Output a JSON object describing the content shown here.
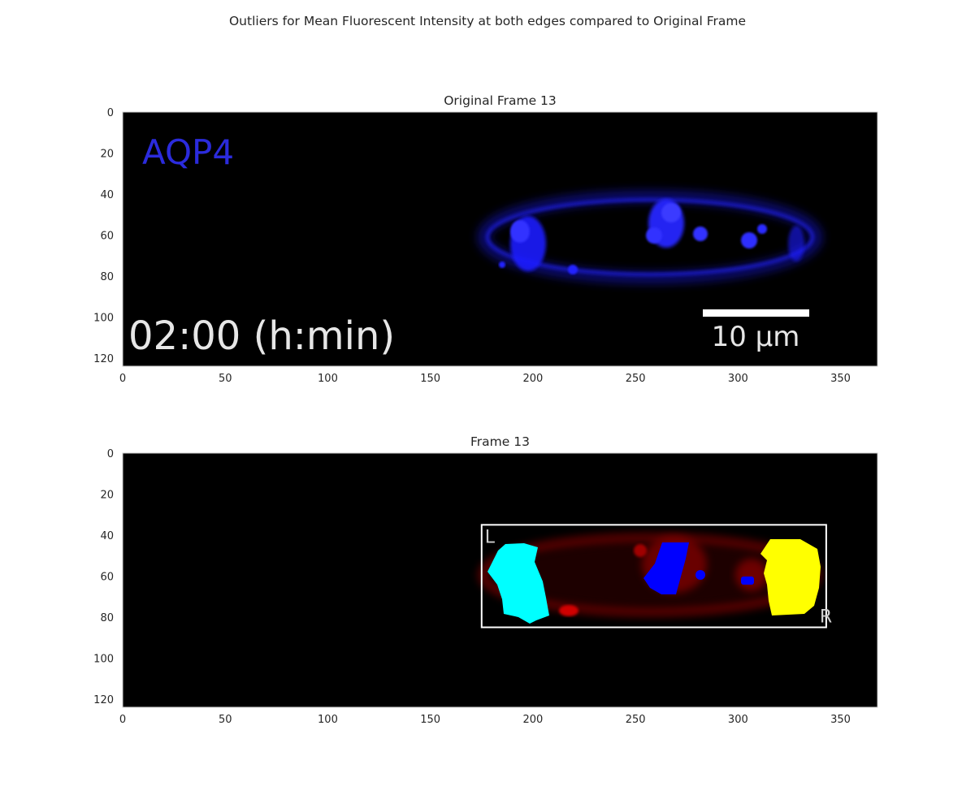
{
  "figure_title": "Outliers for Mean Fluorescent Intensity at both edges compared to Original Frame",
  "chart_data": [
    {
      "type": "image",
      "title": "Original Frame 13",
      "xlim": [
        0,
        368
      ],
      "ylim": [
        124,
        0
      ],
      "xticks": [
        0,
        50,
        100,
        150,
        200,
        250,
        300,
        350
      ],
      "yticks": [
        0,
        20,
        40,
        60,
        80,
        100,
        120
      ],
      "grid": false,
      "image_labels": {
        "channel": "AQP4",
        "timestamp": "02:00 (h:min)",
        "scalebar": "10 µm"
      },
      "colors": {
        "signal": "#1f1fff",
        "background": "#000000",
        "text": "#e6e6e6"
      }
    },
    {
      "type": "image",
      "title": "Frame 13",
      "xlim": [
        0,
        368
      ],
      "ylim": [
        124,
        0
      ],
      "xticks": [
        0,
        50,
        100,
        150,
        200,
        250,
        300,
        350
      ],
      "yticks": [
        0,
        20,
        40,
        60,
        80,
        100,
        120
      ],
      "grid": false,
      "roi_box": {
        "x0": 175,
        "x1": 343,
        "y0": 35,
        "y1": 85
      },
      "edge_labels": {
        "left": "L",
        "right": "R"
      },
      "regions": [
        {
          "name": "left edge outlier",
          "color": "#00ffff"
        },
        {
          "name": "right edge outlier",
          "color": "#ffff00"
        },
        {
          "name": "interior outlier",
          "color": "#0000ff"
        }
      ],
      "colors": {
        "intensity": "#b00000",
        "background": "#000000"
      }
    }
  ]
}
